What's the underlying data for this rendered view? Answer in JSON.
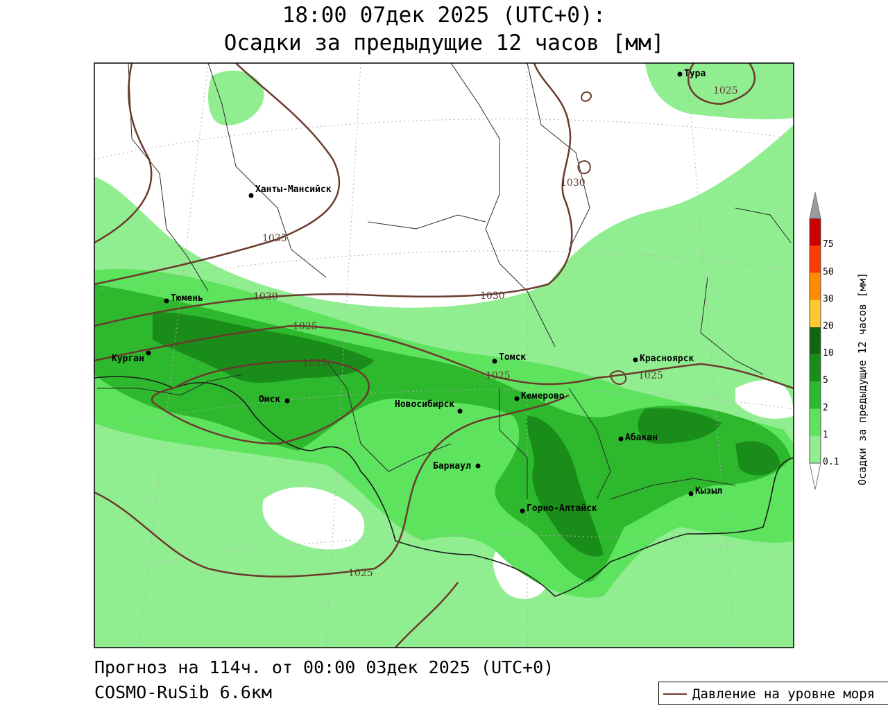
{
  "header": {
    "line1": "18:00 07дек 2025 (UTC+0):",
    "line2": "Осадки за предыдущие 12 часов [мм]"
  },
  "footer": {
    "forecast": "Прогноз на 114ч. от 00:00 03дек 2025 (UTC+0)",
    "model": "COSMO-RuSib 6.6км"
  },
  "legend": {
    "pressure_label": "Давление на уровне моря",
    "pressure_color": "#6b3a2e"
  },
  "colorbar": {
    "title": "Осадки за предыдущие 12 часов [мм]",
    "ticks": [
      "0.1",
      "1",
      "2",
      "5",
      "10",
      "20",
      "30",
      "50",
      "75"
    ],
    "colors": [
      "#90ee90",
      "#5ee35e",
      "#2db82d",
      "#1a8c1a",
      "#116611",
      "#ffc832",
      "#ff8c00",
      "#ff3c00",
      "#cc0000",
      "#8b0000"
    ]
  },
  "cities": [
    {
      "name": "Тура"
    },
    {
      "name": "Ханты-Мансийск"
    },
    {
      "name": "Тюмень"
    },
    {
      "name": "Курган"
    },
    {
      "name": "Омск"
    },
    {
      "name": "Новосибирск"
    },
    {
      "name": "Томск"
    },
    {
      "name": "Кемерово"
    },
    {
      "name": "Красноярск"
    },
    {
      "name": "Барнаул"
    },
    {
      "name": "Абакан"
    },
    {
      "name": "Горно-Алтайск"
    },
    {
      "name": "Кызыл"
    }
  ],
  "isobars": {
    "labels": [
      "1025",
      "1030",
      "1035",
      "1030",
      "1030",
      "1025",
      "1025",
      "1025",
      "1025",
      "1025"
    ]
  }
}
